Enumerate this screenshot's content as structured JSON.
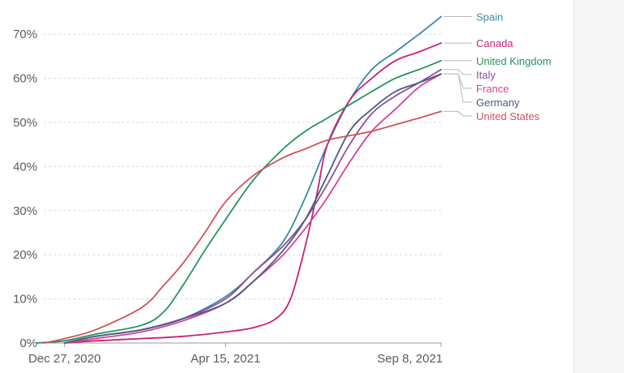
{
  "chart_data": {
    "type": "line",
    "title": "",
    "xlabel": "",
    "ylabel": "",
    "x_ticks": [
      "Dec 27, 2020",
      "Apr 15, 2021",
      "Sep 8, 2021"
    ],
    "x_range": [
      "2020-12-13",
      "2021-09-08"
    ],
    "y_ticks": [
      "0%",
      "10%",
      "20%",
      "30%",
      "40%",
      "50%",
      "60%",
      "70%"
    ],
    "ylim": [
      0,
      75
    ],
    "grid": true,
    "legend": "right, labels at line ends",
    "series": [
      {
        "name": "Spain",
        "color": "#3a87a9",
        "x": [
          "2020-12-27",
          "2021-01-17",
          "2021-02-17",
          "2021-03-17",
          "2021-04-15",
          "2021-05-04",
          "2021-05-24",
          "2021-06-08",
          "2021-06-23",
          "2021-07-08",
          "2021-07-23",
          "2021-08-08",
          "2021-08-24",
          "2021-09-08"
        ],
        "y": [
          0,
          1.5,
          3,
          5.5,
          10.5,
          16,
          23,
          33,
          45,
          55,
          62,
          66,
          70,
          74
        ]
      },
      {
        "name": "Canada",
        "color": "#c8217a",
        "x": [
          "2020-12-27",
          "2021-01-17",
          "2021-02-17",
          "2021-03-17",
          "2021-04-15",
          "2021-05-04",
          "2021-05-19",
          "2021-05-29",
          "2021-06-08",
          "2021-06-16",
          "2021-06-23",
          "2021-07-08",
          "2021-07-23",
          "2021-08-08",
          "2021-08-24",
          "2021-09-08"
        ],
        "y": [
          0,
          0.5,
          1,
          1.5,
          2.5,
          3.5,
          5.5,
          10,
          22,
          34,
          45,
          55,
          60,
          64,
          66,
          68
        ]
      },
      {
        "name": "United Kingdom",
        "color": "#24935b",
        "x": [
          "2020-12-08",
          "2020-12-27",
          "2021-01-17",
          "2021-02-17",
          "2021-03-04",
          "2021-03-17",
          "2021-04-01",
          "2021-04-15",
          "2021-05-04",
          "2021-05-24",
          "2021-06-08",
          "2021-06-23",
          "2021-07-08",
          "2021-07-23",
          "2021-08-08",
          "2021-08-24",
          "2021-09-08"
        ],
        "y": [
          0,
          0.5,
          2,
          4,
          7,
          13,
          21,
          28,
          37,
          44,
          48,
          51,
          54,
          57,
          60,
          62,
          64
        ]
      },
      {
        "name": "Italy",
        "color": "#8d4fa3",
        "x": [
          "2020-12-27",
          "2021-01-17",
          "2021-02-17",
          "2021-03-17",
          "2021-04-15",
          "2021-05-04",
          "2021-05-24",
          "2021-06-08",
          "2021-06-23",
          "2021-07-08",
          "2021-07-23",
          "2021-08-08",
          "2021-08-24",
          "2021-09-08"
        ],
        "y": [
          0,
          1.5,
          3,
          5.5,
          10,
          16,
          22,
          28,
          36,
          45,
          52,
          56,
          59,
          62
        ]
      },
      {
        "name": "France",
        "color": "#d6419d",
        "x": [
          "2020-12-27",
          "2021-01-17",
          "2021-02-17",
          "2021-03-17",
          "2021-04-15",
          "2021-05-04",
          "2021-05-24",
          "2021-06-08",
          "2021-06-23",
          "2021-07-08",
          "2021-07-23",
          "2021-08-08",
          "2021-08-24",
          "2021-09-08"
        ],
        "y": [
          0,
          1,
          2.5,
          5,
          9,
          14,
          20,
          26,
          33,
          41,
          48,
          53,
          58,
          61
        ]
      },
      {
        "name": "Germany",
        "color": "#4c5b7d",
        "x": [
          "2020-12-27",
          "2021-01-17",
          "2021-02-17",
          "2021-03-17",
          "2021-04-15",
          "2021-05-04",
          "2021-05-24",
          "2021-06-08",
          "2021-06-23",
          "2021-07-08",
          "2021-07-23",
          "2021-08-08",
          "2021-08-24",
          "2021-09-08"
        ],
        "y": [
          0,
          1.5,
          3,
          5.5,
          9,
          14,
          21,
          28,
          38,
          48,
          53,
          57,
          59,
          61
        ]
      },
      {
        "name": "United States",
        "color": "#d0525b",
        "x": [
          "2020-12-13",
          "2020-12-27",
          "2021-01-17",
          "2021-02-17",
          "2021-03-04",
          "2021-03-17",
          "2021-04-01",
          "2021-04-15",
          "2021-05-04",
          "2021-05-24",
          "2021-06-08",
          "2021-06-23",
          "2021-07-08",
          "2021-07-23",
          "2021-08-08",
          "2021-08-24",
          "2021-09-08"
        ],
        "y": [
          0,
          1,
          3,
          8,
          13,
          18,
          25,
          32,
          38,
          42,
          44,
          46,
          47,
          48,
          49.5,
          51,
          52.5
        ]
      }
    ]
  }
}
